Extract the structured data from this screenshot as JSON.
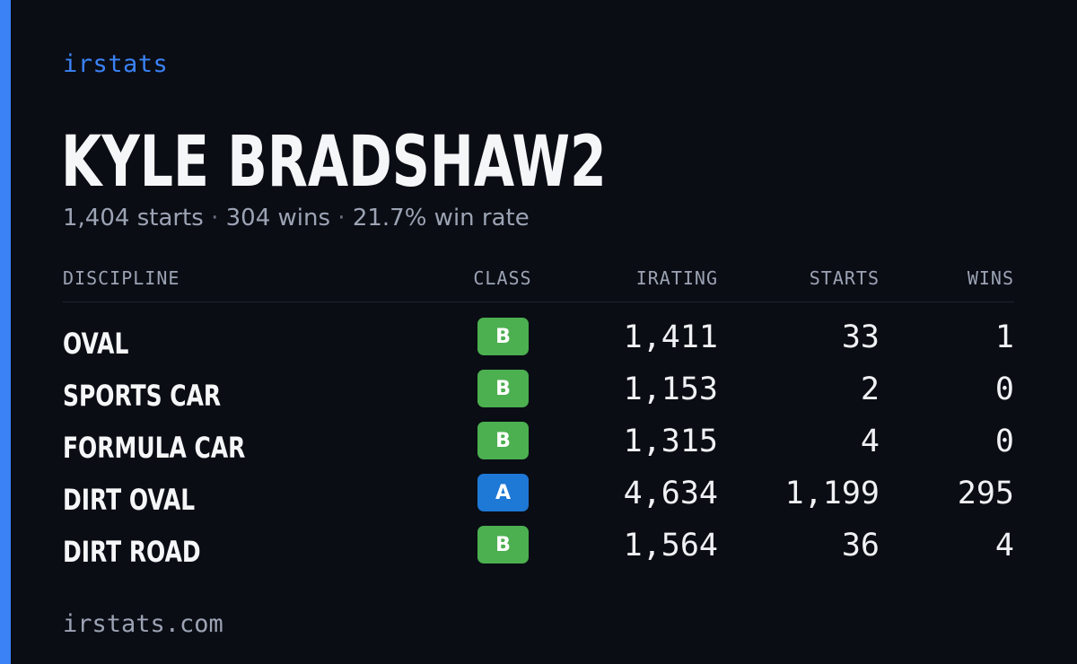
{
  "brand": "irstats",
  "driver": {
    "name": "KYLE BRADSHAW2",
    "starts": "1,404 starts",
    "wins": "304 wins",
    "win_rate": "21.7% win rate",
    "separator": "·"
  },
  "table": {
    "headers": {
      "discipline": "DISCIPLINE",
      "class": "CLASS",
      "irating": "IRATING",
      "starts": "STARTS",
      "wins": "WINS"
    },
    "rows": [
      {
        "discipline": "OVAL",
        "class": "B",
        "class_color": "#4caf50",
        "irating": "1,411",
        "starts": "33",
        "wins": "1"
      },
      {
        "discipline": "SPORTS CAR",
        "class": "B",
        "class_color": "#4caf50",
        "irating": "1,153",
        "starts": "2",
        "wins": "0"
      },
      {
        "discipline": "FORMULA CAR",
        "class": "B",
        "class_color": "#4caf50",
        "irating": "1,315",
        "starts": "4",
        "wins": "0"
      },
      {
        "discipline": "DIRT OVAL",
        "class": "A",
        "class_color": "#1e78d6",
        "irating": "4,634",
        "starts": "1,199",
        "wins": "295"
      },
      {
        "discipline": "DIRT ROAD",
        "class": "B",
        "class_color": "#4caf50",
        "irating": "1,564",
        "starts": "36",
        "wins": "4"
      }
    ]
  },
  "footer": "irstats.com",
  "colors": {
    "background": "#0a0d14",
    "accent": "#3b82f6",
    "class_b": "#4caf50",
    "class_a": "#1e78d6"
  }
}
